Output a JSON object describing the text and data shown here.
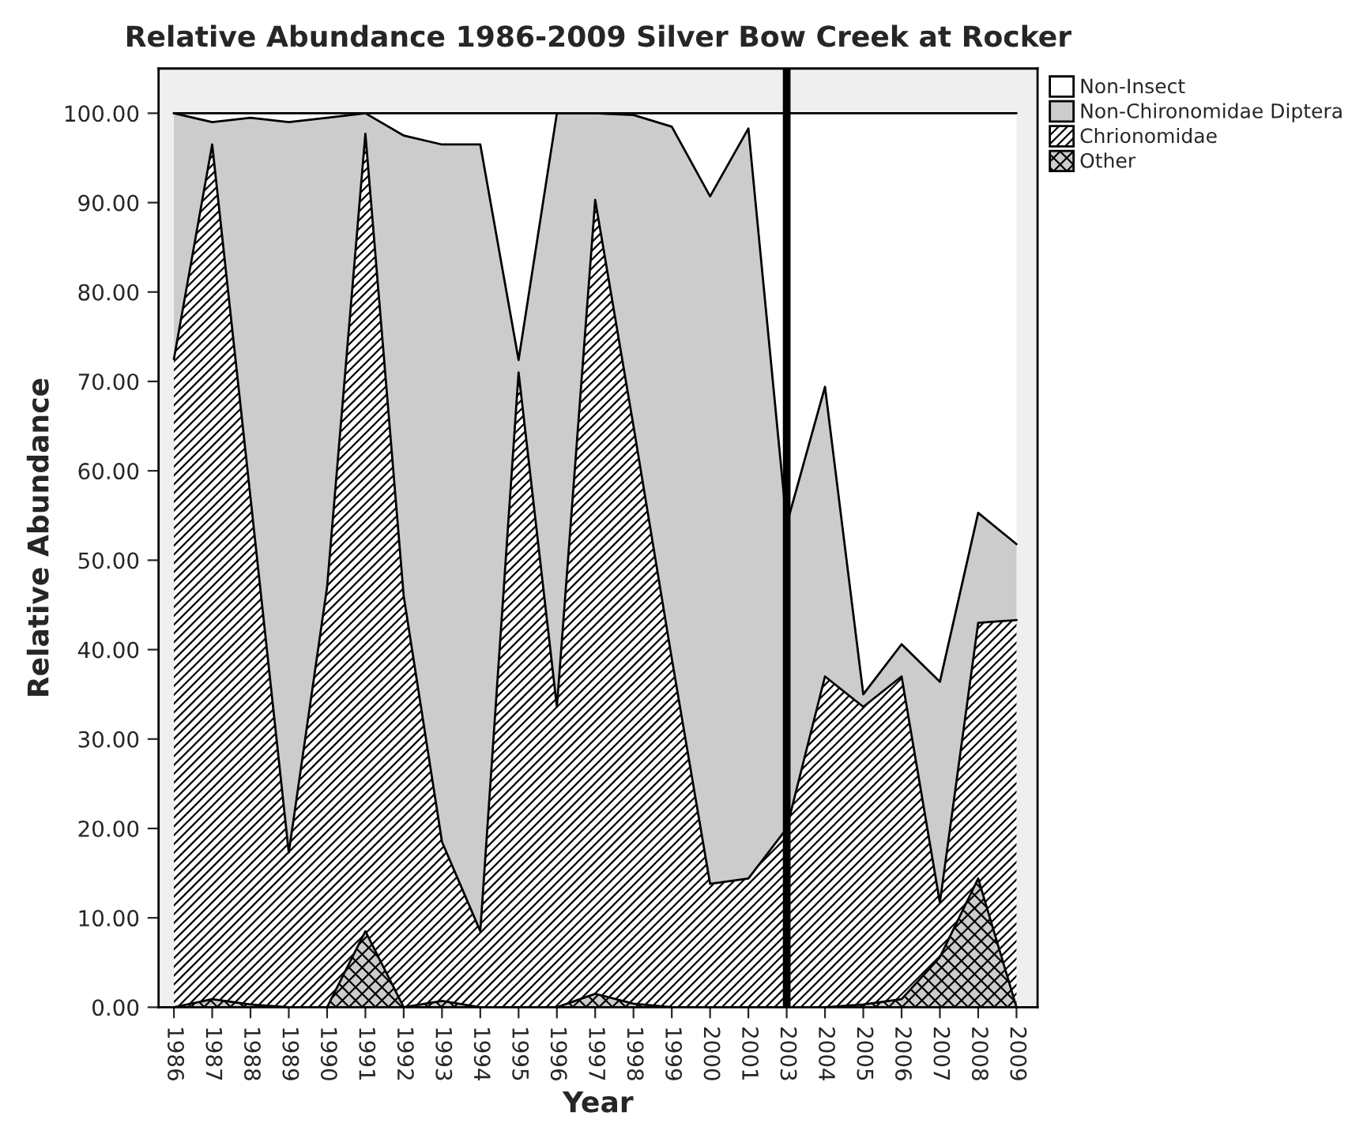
{
  "chart_data": {
    "type": "area",
    "stacked": true,
    "title": "Relative Abundance 1986-2009 Silver Bow Creek at Rocker",
    "xlabel": "Year",
    "ylabel": "Relative Abundance",
    "categories": [
      "1986",
      "1987",
      "1988",
      "1989",
      "1990",
      "1991",
      "1992",
      "1993",
      "1994",
      "1995",
      "1996",
      "1997",
      "1998",
      "1999",
      "2000",
      "2001",
      "2003",
      "2004",
      "2005",
      "2006",
      "2007",
      "2008",
      "2009"
    ],
    "series": [
      {
        "name": "Other",
        "color": "#cccccc",
        "values": [
          0,
          0.9,
          0.3,
          0,
          0,
          8.5,
          0,
          0.7,
          0,
          0,
          0,
          1.5,
          0.4,
          0,
          0,
          0,
          0,
          0,
          0.3,
          0.9,
          5.6,
          14.4,
          0
        ]
      },
      {
        "name": "Chrionomidae",
        "color": "#ffffff",
        "values": [
          72.5,
          95.6,
          56.7,
          17.3,
          47,
          89.2,
          46,
          17.8,
          8.5,
          71,
          33.6,
          88.8,
          64.6,
          39,
          13.8,
          14.4,
          20,
          37,
          33.3,
          36.1,
          6.1,
          28.6,
          43.3
        ]
      },
      {
        "name": "Non-Chironomidae Diptera",
        "color": "#cccccc",
        "values": [
          27.5,
          2.5,
          42.5,
          81.7,
          52.5,
          2.3,
          51.5,
          78,
          88,
          1.4,
          66.4,
          9.7,
          34.8,
          59.5,
          76.9,
          83.9,
          34,
          32.4,
          1.4,
          3.6,
          24.7,
          12.3,
          8.5
        ]
      },
      {
        "name": "Non-Insect",
        "color": "#ffffff",
        "values": [
          0,
          1,
          0.5,
          1,
          0.5,
          0,
          2.5,
          3.5,
          3.5,
          27.6,
          0,
          0,
          0.2,
          1.5,
          9.3,
          1.7,
          46,
          30.6,
          65,
          59.4,
          63.6,
          44.7,
          48.2
        ]
      }
    ],
    "ylim": [
      0,
      105
    ],
    "yticks": [
      {
        "value": 0,
        "label": "0.00"
      },
      {
        "value": 10,
        "label": "10.00"
      },
      {
        "value": 20,
        "label": "20.00"
      },
      {
        "value": 30,
        "label": "30.00"
      },
      {
        "value": 40,
        "label": "40.00"
      },
      {
        "value": 50,
        "label": "50.00"
      },
      {
        "value": 60,
        "label": "60.00"
      },
      {
        "value": 70,
        "label": "70.00"
      },
      {
        "value": 80,
        "label": "80.00"
      },
      {
        "value": 90,
        "label": "90.00"
      },
      {
        "value": 100,
        "label": "100.00"
      }
    ],
    "ref_lines": [
      {
        "axis": "x",
        "value": "2003",
        "color": "#000000"
      }
    ],
    "grid": false,
    "legend": "top right"
  }
}
